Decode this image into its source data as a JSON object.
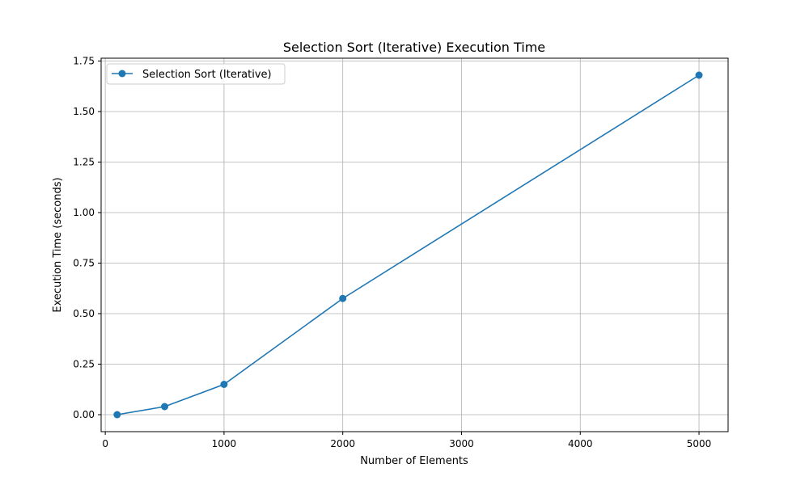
{
  "chart_data": {
    "type": "line",
    "title": "Selection Sort (Iterative) Execution Time",
    "xlabel": "Number of Elements",
    "ylabel": "Execution Time (seconds)",
    "xlim": [
      -35,
      5245
    ],
    "ylim": [
      -0.084,
      1.764
    ],
    "xticks": [
      0,
      1000,
      2000,
      3000,
      4000,
      5000
    ],
    "yticks": [
      0.0,
      0.25,
      0.5,
      0.75,
      1.0,
      1.25,
      1.5,
      1.75
    ],
    "xtick_labels": [
      "0",
      "1000",
      "2000",
      "3000",
      "4000",
      "5000"
    ],
    "ytick_labels": [
      "0.00",
      "0.25",
      "0.50",
      "0.75",
      "1.00",
      "1.25",
      "1.50",
      "1.75"
    ],
    "grid": true,
    "legend_position": "top-left",
    "series": [
      {
        "name": "Selection Sort (Iterative)",
        "color": "#1f77b4",
        "marker": "circle",
        "x": [
          100,
          500,
          1000,
          2000,
          5000
        ],
        "y": [
          0.0,
          0.04,
          0.15,
          0.575,
          1.68
        ]
      }
    ]
  }
}
